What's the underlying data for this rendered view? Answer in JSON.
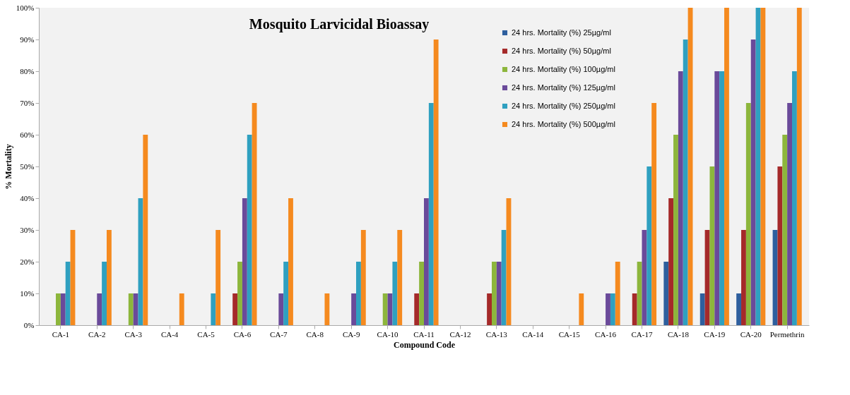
{
  "chart_data": {
    "type": "bar",
    "title": "Mosquito Larvicidal Bioassay",
    "xlabel": "Compound Code",
    "ylabel": "% Mortality",
    "categories": [
      "CA-1",
      "CA-2",
      "CA-3",
      "CA-4",
      "CA-5",
      "CA-6",
      "CA-7",
      "CA-8",
      "CA-9",
      "CA-10",
      "CA-11",
      "CA-12",
      "CA-13",
      "CA-14",
      "CA-15",
      "CA-16",
      "CA-17",
      "CA-18",
      "CA-19",
      "CA-20",
      "Permethrin"
    ],
    "series": [
      {
        "name": "24 hrs. Mortality (%)  25µg/ml",
        "color": "#2e5f9e",
        "values": [
          0,
          0,
          0,
          0,
          0,
          0,
          0,
          0,
          0,
          0,
          0,
          0,
          0,
          0,
          0,
          0,
          0,
          20,
          10,
          10,
          30
        ]
      },
      {
        "name": "24 hrs. Mortality (%)  50µg/ml",
        "color": "#a52a2a",
        "values": [
          0,
          0,
          0,
          0,
          0,
          10,
          0,
          0,
          0,
          0,
          10,
          0,
          10,
          0,
          0,
          0,
          10,
          40,
          30,
          30,
          50
        ]
      },
      {
        "name": "24 hrs. Mortality (%)  100µg/ml",
        "color": "#8db63c",
        "values": [
          10,
          0,
          10,
          0,
          0,
          20,
          0,
          0,
          0,
          10,
          20,
          0,
          20,
          0,
          0,
          0,
          20,
          60,
          50,
          70,
          60
        ]
      },
      {
        "name": "24 hrs. Mortality (%)  125µg/ml",
        "color": "#6a4a9a",
        "values": [
          10,
          10,
          10,
          0,
          0,
          40,
          10,
          0,
          10,
          10,
          40,
          0,
          20,
          0,
          0,
          10,
          30,
          80,
          80,
          90,
          70
        ]
      },
      {
        "name": "24 hrs. Mortality (%)  250µg/ml",
        "color": "#2fa0c0",
        "values": [
          20,
          20,
          40,
          0,
          10,
          60,
          20,
          0,
          20,
          20,
          70,
          0,
          30,
          0,
          0,
          10,
          50,
          90,
          80,
          100,
          80
        ]
      },
      {
        "name": "24 hrs. Mortality (%)  500µg/ml",
        "color": "#f58a1f",
        "values": [
          30,
          30,
          60,
          10,
          30,
          70,
          40,
          10,
          30,
          30,
          90,
          0,
          40,
          0,
          10,
          20,
          70,
          100,
          100,
          100,
          100
        ]
      }
    ],
    "ylim": [
      0,
      100
    ],
    "yticks": [
      {
        "value": 0,
        "label": "0%"
      },
      {
        "value": 10,
        "label": "10%"
      },
      {
        "value": 20,
        "label": "20%"
      },
      {
        "value": 30,
        "label": "30%"
      },
      {
        "value": 40,
        "label": "40%"
      },
      {
        "value": 50,
        "label": "50%"
      },
      {
        "value": 60,
        "label": "60%"
      },
      {
        "value": 70,
        "label": "70%"
      },
      {
        "value": 80,
        "label": "80%"
      },
      {
        "value": 90,
        "label": "90%"
      },
      {
        "value": 100,
        "label": "100%"
      }
    ],
    "grid": false,
    "legend": "top"
  }
}
